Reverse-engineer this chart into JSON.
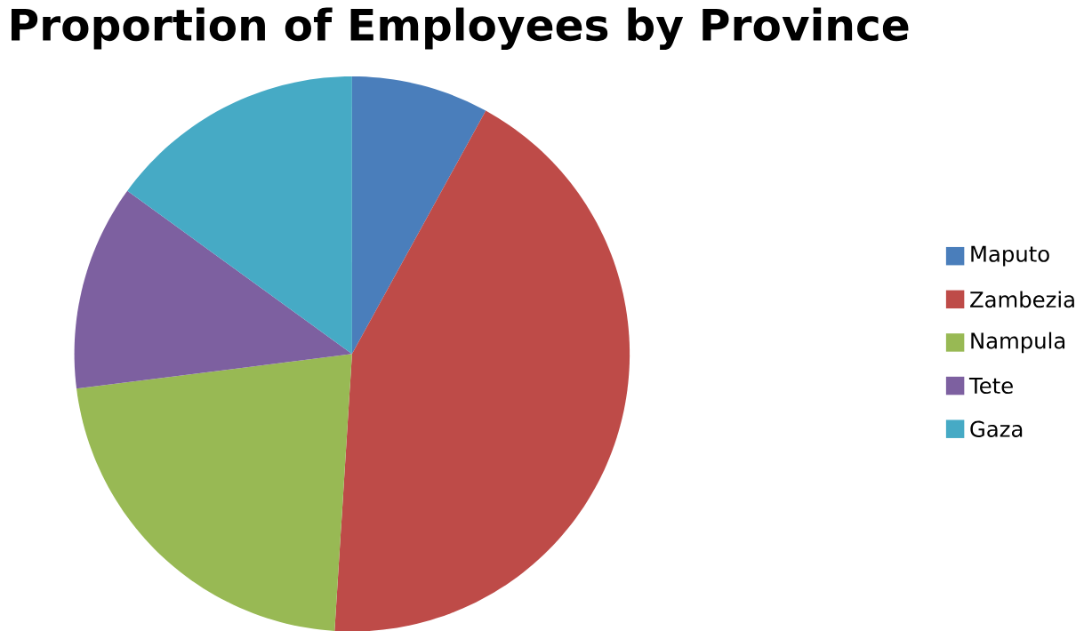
{
  "chart_data": {
    "type": "pie",
    "title": "Proportion of Employees by Province",
    "categories": [
      "Maputo",
      "Zambezia",
      "Nampula",
      "Tete",
      "Gaza"
    ],
    "values": [
      8,
      43,
      22,
      12,
      15
    ],
    "colors": [
      "#4a7ebb",
      "#be4b48",
      "#98b954",
      "#7d60a0",
      "#46aac5"
    ],
    "legend": "right"
  }
}
